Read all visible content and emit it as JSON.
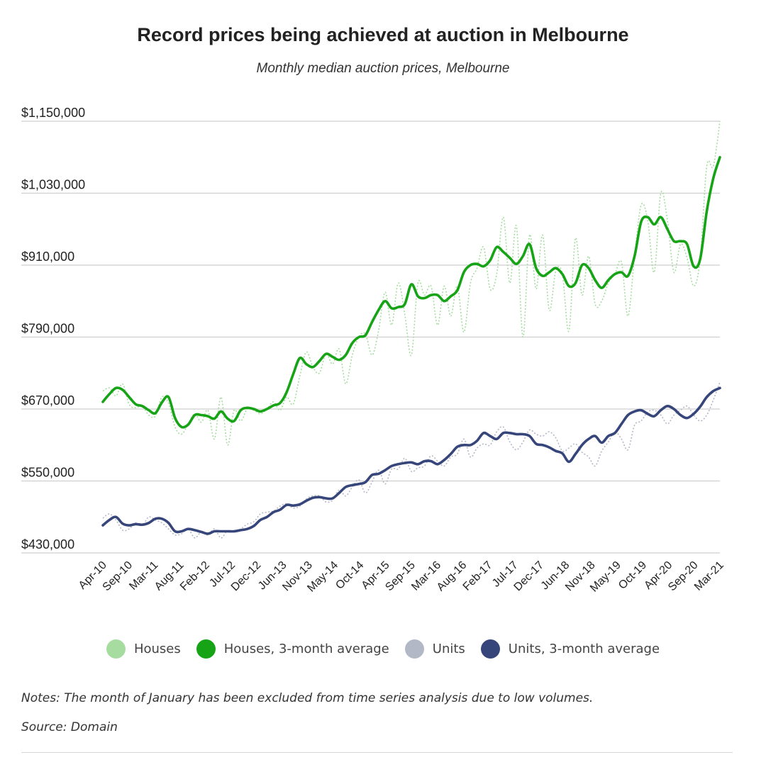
{
  "title": "Record prices being achieved at auction in Melbourne",
  "subtitle": "Monthly median auction prices, Melbourne",
  "notes": "Notes: The month of January has been excluded from time series analysis due to low volumes.",
  "source": "Source: Domain",
  "legend": [
    {
      "label": "Houses",
      "color": "#a6dca0"
    },
    {
      "label": "Houses, 3-month average",
      "color": "#16a316"
    },
    {
      "label": "Units",
      "color": "#b3b8c6"
    },
    {
      "label": "Units, 3-month average",
      "color": "#36457a"
    }
  ],
  "chart_data": {
    "type": "line",
    "ylim": [
      430000,
      1150000
    ],
    "y_ticks": [
      430000,
      550000,
      670000,
      790000,
      910000,
      1030000,
      1150000
    ],
    "y_tick_labels": [
      "$430,000",
      "$550,000",
      "$670,000",
      "$790,000",
      "$910,000",
      "$1,030,000",
      "$1,150,000"
    ],
    "x_tick_labels": [
      "Apr-10",
      "Sep-10",
      "Mar-11",
      "Aug-11",
      "Feb-12",
      "Jul-12",
      "Dec-12",
      "Jun-13",
      "Nov-13",
      "May-14",
      "Oct-14",
      "Apr-15",
      "Sep-15",
      "Mar-16",
      "Aug-16",
      "Feb-17",
      "Jul-17",
      "Dec-17",
      "Jun-18",
      "Nov-18",
      "May-19",
      "Oct-19",
      "Apr-20",
      "Sep-20",
      "Mar-21"
    ],
    "series": [
      {
        "name": "Houses",
        "color": "#a6dca0",
        "style": "dotted",
        "values": [
          700000,
          705000,
          692000,
          712000,
          678000,
          672000,
          675000,
          660000,
          658000,
          690000,
          680000,
          640000,
          628000,
          645000,
          662000,
          648000,
          668000,
          620000,
          690000,
          610000,
          668000,
          650000,
          670000,
          668000,
          662000,
          670000,
          682000,
          668000,
          690000,
          678000,
          725000,
          765000,
          740000,
          730000,
          762000,
          745000,
          770000,
          712000,
          760000,
          790000,
          795000,
          760000,
          800000,
          865000,
          810000,
          880000,
          828000,
          760000,
          880000,
          860000,
          875000,
          810000,
          875000,
          825000,
          875000,
          798000,
          880000,
          905000,
          940000,
          870000,
          895000,
          990000,
          880000,
          975000,
          790000,
          960000,
          870000,
          960000,
          835000,
          900000,
          895000,
          800000,
          955000,
          860000,
          925000,
          845000,
          850000,
          880000,
          895000,
          915000,
          825000,
          925000,
          1010000,
          985000,
          898000,
          1030000,
          985000,
          898000,
          945000,
          922000,
          875000,
          920000,
          1075000,
          1075000,
          1150000
        ]
      },
      {
        "name": "Houses, 3-month average",
        "color": "#16a316",
        "style": "solid",
        "values": [
          682000,
          695000,
          705000,
          702000,
          690000,
          678000,
          675000,
          668000,
          663000,
          681000,
          690000,
          655000,
          640000,
          644000,
          660000,
          660000,
          658000,
          654000,
          666000,
          654000,
          650000,
          668000,
          672000,
          670000,
          666000,
          670000,
          676000,
          680000,
          698000,
          728000,
          755000,
          745000,
          740000,
          750000,
          762000,
          757000,
          752000,
          760000,
          780000,
          790000,
          793000,
          815000,
          835000,
          850000,
          838000,
          840000,
          845000,
          878000,
          858000,
          855000,
          860000,
          860000,
          850000,
          858000,
          868000,
          898000,
          910000,
          912000,
          908000,
          918000,
          940000,
          932000,
          922000,
          912000,
          925000,
          945000,
          905000,
          892000,
          898000,
          905000,
          895000,
          875000,
          880000,
          910000,
          905000,
          885000,
          872000,
          885000,
          895000,
          898000,
          892000,
          925000,
          982000,
          990000,
          978000,
          990000,
          970000,
          950000,
          950000,
          945000,
          908000,
          920000,
          1000000,
          1055000,
          1090000
        ]
      },
      {
        "name": "Units",
        "color": "#b3b8c6",
        "style": "dotted",
        "values": [
          488000,
          495000,
          485000,
          468000,
          470000,
          480000,
          476000,
          490000,
          485000,
          480000,
          470000,
          460000,
          462000,
          470000,
          455000,
          465000,
          460000,
          470000,
          455000,
          467000,
          465000,
          470000,
          478000,
          482000,
          495000,
          498000,
          500000,
          508000,
          512000,
          505000,
          508000,
          520000,
          525000,
          525000,
          515000,
          518000,
          535000,
          525000,
          540000,
          552000,
          530000,
          548000,
          568000,
          545000,
          570000,
          570000,
          588000,
          566000,
          572000,
          575000,
          592000,
          583000,
          575000,
          590000,
          595000,
          620000,
          590000,
          605000,
          612000,
          610000,
          632000,
          640000,
          615000,
          602000,
          615000,
          635000,
          628000,
          625000,
          632000,
          622000,
          600000,
          605000,
          612000,
          598000,
          590000,
          575000,
          600000,
          615000,
          632000,
          620000,
          602000,
          643000,
          650000,
          665000,
          668000,
          660000,
          645000,
          660000,
          668000,
          675000,
          660000,
          650000,
          660000,
          685000,
          715000
        ]
      },
      {
        "name": "Units, 3-month average",
        "color": "#36457a",
        "style": "solid",
        "values": [
          476000,
          485000,
          490000,
          479000,
          476000,
          478000,
          477000,
          480000,
          487000,
          487000,
          480000,
          466000,
          466000,
          470000,
          468000,
          465000,
          462000,
          466000,
          466000,
          466000,
          466000,
          468000,
          470000,
          475000,
          485000,
          490000,
          498000,
          502000,
          510000,
          509000,
          511000,
          517000,
          522000,
          523000,
          521000,
          521000,
          530000,
          540000,
          543000,
          545000,
          548000,
          560000,
          562000,
          568000,
          575000,
          578000,
          580000,
          581000,
          578000,
          583000,
          583000,
          578000,
          585000,
          595000,
          607000,
          610000,
          610000,
          617000,
          630000,
          625000,
          620000,
          630000,
          630000,
          628000,
          628000,
          625000,
          612000,
          610000,
          606000,
          600000,
          596000,
          582000,
          595000,
          610000,
          620000,
          625000,
          614000,
          625000,
          630000,
          645000,
          660000,
          666000,
          668000,
          662000,
          658000,
          668000,
          675000,
          670000,
          660000,
          655000,
          662000,
          674000,
          690000,
          700000,
          705000
        ]
      }
    ]
  }
}
